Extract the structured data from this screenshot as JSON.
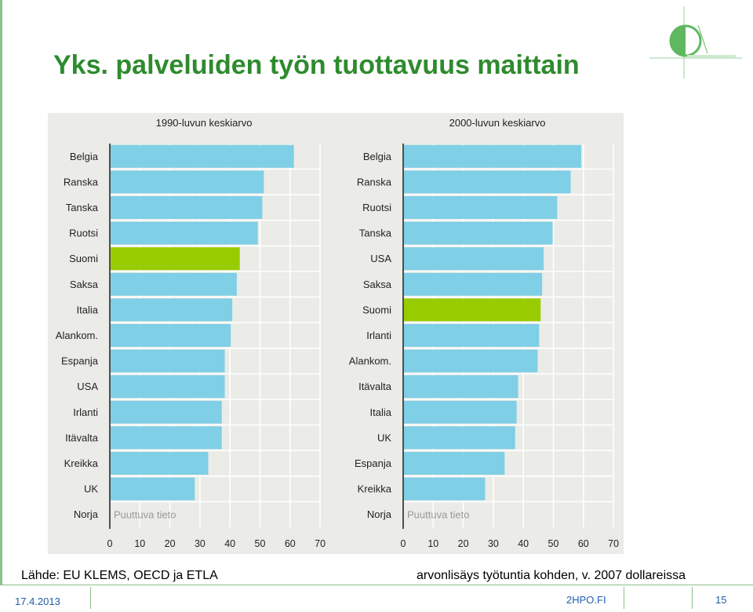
{
  "slide": {
    "title": "Yks. palveluiden työn tuottavuus maittain",
    "source": "Lähde: EU KLEMS, OECD ja ETLA",
    "unit_note": "arvonlisäys työtuntia kohden, v. 2007 dollareissa",
    "date": "17.4.2013",
    "site": "2HPO.FI",
    "page": "15"
  },
  "colors": {
    "title": "#2e8b2e",
    "bar": "#7fcfe6",
    "highlight": "#99cc00",
    "panel_bg": "#ebebe7",
    "footer_text": "#1f5fa8",
    "accent_line": "#8cc08c"
  },
  "chart_data": [
    {
      "type": "bar",
      "orientation": "horizontal",
      "title": "1990-luvun keskiarvo",
      "categories": [
        "Belgia",
        "Ranska",
        "Tanska",
        "Ruotsi",
        "Suomi",
        "Saksa",
        "Italia",
        "Alankom.",
        "Espanja",
        "USA",
        "Irlanti",
        "Itävalta",
        "Kreikka",
        "UK",
        "Norja"
      ],
      "values": [
        61,
        51,
        50.5,
        49,
        43,
        42,
        40.5,
        40,
        38,
        38,
        37,
        37,
        32.5,
        28,
        null
      ],
      "highlight": "Suomi",
      "missing_label": "Puuttuva tieto",
      "xlim": [
        0,
        70
      ],
      "xticks": [
        0,
        10,
        20,
        30,
        40,
        50,
        60,
        70
      ],
      "grid": true
    },
    {
      "type": "bar",
      "orientation": "horizontal",
      "title": "2000-luvun keskiarvo",
      "categories": [
        "Belgia",
        "Ranska",
        "Ruotsi",
        "Tanska",
        "USA",
        "Saksa",
        "Suomi",
        "Irlanti",
        "Alankom.",
        "Itävalta",
        "Italia",
        "UK",
        "Espanja",
        "Kreikka",
        "Norja"
      ],
      "values": [
        59,
        55.5,
        51,
        49.5,
        46.5,
        46,
        45.5,
        45,
        44.5,
        38,
        37.5,
        37,
        33.5,
        27,
        null
      ],
      "highlight": "Suomi",
      "missing_label": "Puuttuva tieto",
      "xlim": [
        0,
        70
      ],
      "xticks": [
        0,
        10,
        20,
        30,
        40,
        50,
        60,
        70
      ],
      "grid": true
    }
  ]
}
